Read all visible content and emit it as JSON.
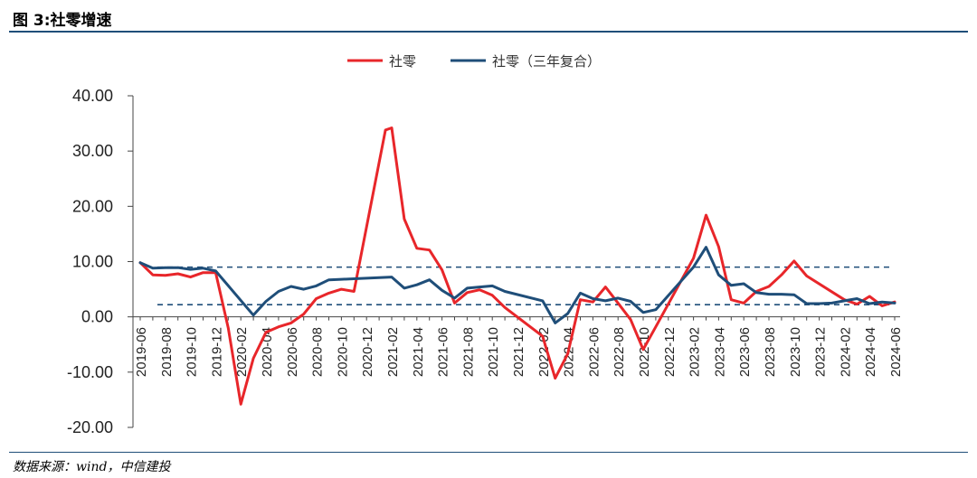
{
  "figure": {
    "title": "图 3:社零增速",
    "source": "数据来源：wind，中信建投"
  },
  "chart_data": {
    "type": "line",
    "ylim": [
      -20,
      40
    ],
    "yticks": [
      "40.00",
      "30.00",
      "20.00",
      "10.00",
      "0.00",
      "-10.00",
      "-20.00"
    ],
    "x_labels": [
      "2019-06",
      "2019-08",
      "2019-10",
      "2019-12",
      "2020-02",
      "2020-04",
      "2020-06",
      "2020-08",
      "2020-10",
      "2020-12",
      "2021-02",
      "2021-04",
      "2021-06",
      "2021-08",
      "2021-10",
      "2021-12",
      "2022-02",
      "2022-04",
      "2022-06",
      "2022-08",
      "2022-10",
      "2022-12",
      "2023-02",
      "2023-04",
      "2023-06",
      "2023-08",
      "2023-10",
      "2023-12",
      "2024-02",
      "2024-04",
      "2024-06"
    ],
    "reference_lines": [
      9.0,
      2.2
    ],
    "legend_position": "top-center",
    "series": [
      {
        "name": "社零",
        "color": "#e8262a",
        "points": [
          [
            0,
            9.8
          ],
          [
            1,
            7.6
          ],
          [
            2,
            7.5
          ],
          [
            3,
            7.8
          ],
          [
            4,
            7.2
          ],
          [
            5,
            8.0
          ],
          [
            6,
            8.0
          ],
          [
            7,
            -2.0
          ],
          [
            8,
            -15.8
          ],
          [
            9,
            -7.5
          ],
          [
            10,
            -2.8
          ],
          [
            11,
            -1.8
          ],
          [
            12,
            -1.1
          ],
          [
            13,
            0.5
          ],
          [
            14,
            3.3
          ],
          [
            15,
            4.3
          ],
          [
            16,
            5.0
          ],
          [
            17,
            4.6
          ],
          [
            19.5,
            33.8
          ],
          [
            20,
            34.2
          ],
          [
            21,
            17.7
          ],
          [
            22,
            12.4
          ],
          [
            23,
            12.1
          ],
          [
            24,
            8.5
          ],
          [
            25,
            2.5
          ],
          [
            26,
            4.4
          ],
          [
            27,
            4.9
          ],
          [
            28,
            3.9
          ],
          [
            29,
            1.7
          ],
          [
            32,
            -3.5
          ],
          [
            33,
            -11.1
          ],
          [
            34,
            -6.7
          ],
          [
            35,
            3.1
          ],
          [
            36,
            2.7
          ],
          [
            37,
            5.4
          ],
          [
            38,
            2.5
          ],
          [
            39,
            -0.5
          ],
          [
            40,
            -5.9
          ],
          [
            41,
            -1.8
          ],
          [
            44,
            10.6
          ],
          [
            45,
            18.4
          ],
          [
            46,
            12.7
          ],
          [
            47,
            3.1
          ],
          [
            48,
            2.5
          ],
          [
            49,
            4.6
          ],
          [
            50,
            5.5
          ],
          [
            51,
            7.6
          ],
          [
            52,
            10.1
          ],
          [
            53,
            7.4
          ],
          [
            56,
            3.1
          ],
          [
            57,
            2.3
          ],
          [
            58,
            3.7
          ],
          [
            59,
            2.0
          ],
          [
            60,
            2.7
          ]
        ]
      },
      {
        "name": "社零（三年复合）",
        "color": "#1f4e79",
        "points": [
          [
            0,
            9.8
          ],
          [
            1,
            8.8
          ],
          [
            2,
            8.9
          ],
          [
            3,
            8.9
          ],
          [
            4,
            8.6
          ],
          [
            5,
            8.8
          ],
          [
            6,
            8.3
          ],
          [
            9,
            0.3
          ],
          [
            10,
            2.8
          ],
          [
            11,
            4.6
          ],
          [
            12,
            5.5
          ],
          [
            13,
            5.0
          ],
          [
            14,
            5.6
          ],
          [
            15,
            6.7
          ],
          [
            16,
            6.8
          ],
          [
            17,
            6.9
          ],
          [
            18,
            7.0
          ],
          [
            19,
            7.1
          ],
          [
            20,
            7.2
          ],
          [
            21,
            5.2
          ],
          [
            22,
            5.8
          ],
          [
            23,
            6.7
          ],
          [
            24,
            4.8
          ],
          [
            25,
            3.4
          ],
          [
            26,
            5.2
          ],
          [
            27,
            5.4
          ],
          [
            28,
            5.6
          ],
          [
            29,
            4.6
          ],
          [
            32,
            2.9
          ],
          [
            33,
            -1.1
          ],
          [
            34,
            0.6
          ],
          [
            35,
            4.3
          ],
          [
            36,
            3.3
          ],
          [
            37,
            2.9
          ],
          [
            38,
            3.4
          ],
          [
            39,
            2.8
          ],
          [
            40,
            0.8
          ],
          [
            41,
            1.3
          ],
          [
            44,
            9.0
          ],
          [
            45,
            12.6
          ],
          [
            46,
            7.6
          ],
          [
            47,
            5.7
          ],
          [
            48,
            6.0
          ],
          [
            49,
            4.4
          ],
          [
            50,
            4.1
          ],
          [
            51,
            4.1
          ],
          [
            52,
            4.0
          ],
          [
            53,
            2.4
          ],
          [
            54,
            2.4
          ],
          [
            55,
            2.5
          ],
          [
            56,
            2.9
          ],
          [
            57,
            3.3
          ],
          [
            58,
            2.4
          ],
          [
            59,
            2.7
          ],
          [
            60,
            2.5
          ]
        ]
      }
    ]
  }
}
